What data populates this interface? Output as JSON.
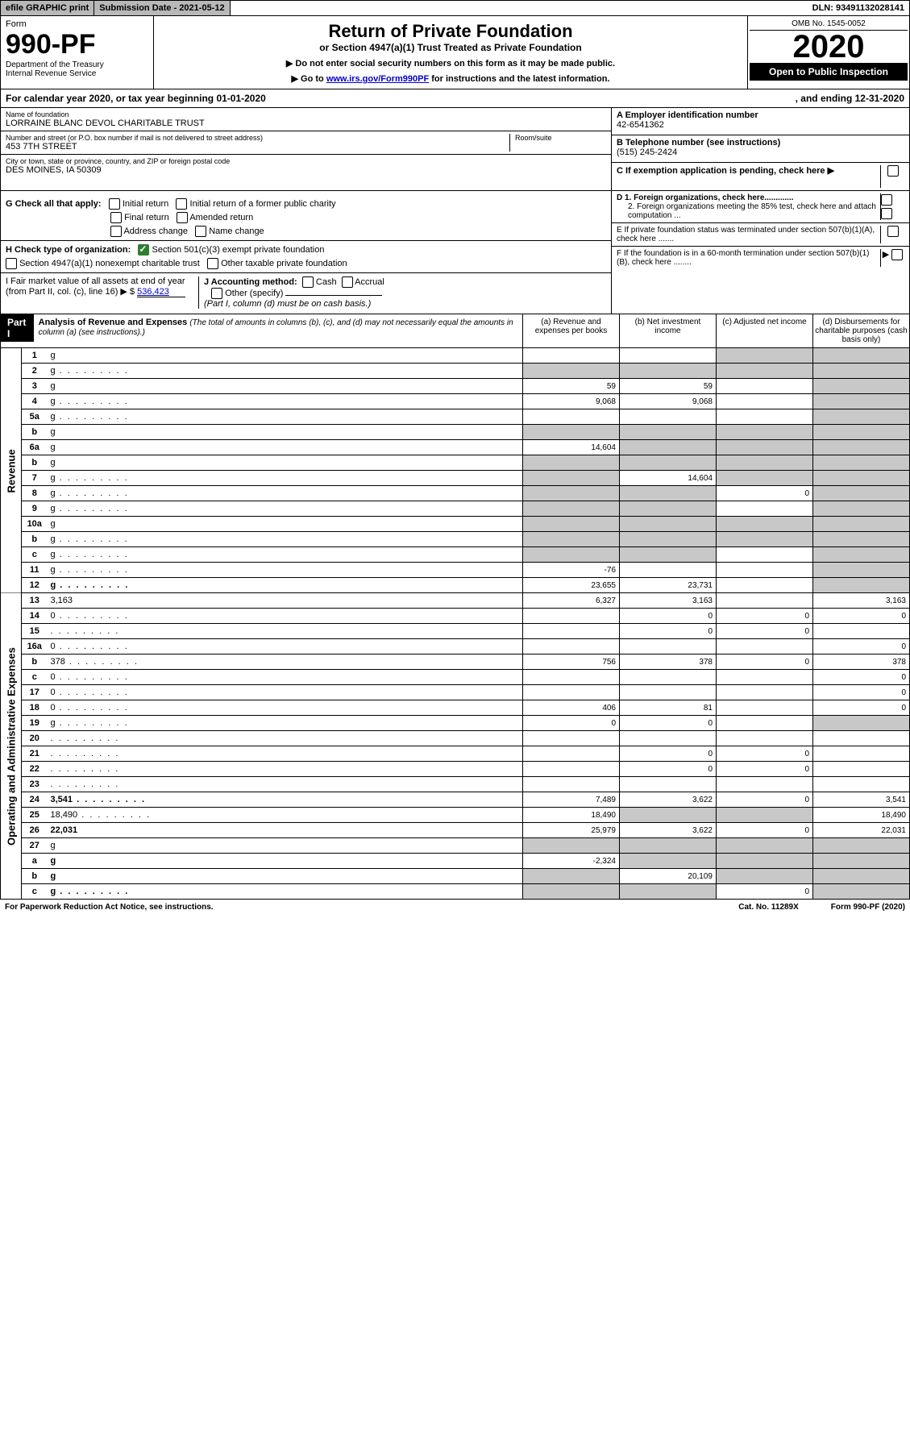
{
  "top_bar": {
    "efile": "efile GRAPHIC print",
    "sub_date_label": "Submission Date - 2021-05-12",
    "dln": "DLN: 93491132028141"
  },
  "header": {
    "form_word": "Form",
    "form_no": "990-PF",
    "dept": "Department of the Treasury",
    "irs": "Internal Revenue Service",
    "title": "Return of Private Foundation",
    "subtitle": "or Section 4947(a)(1) Trust Treated as Private Foundation",
    "note1": "▶ Do not enter social security numbers on this form as it may be made public.",
    "note2_pre": "▶ Go to ",
    "note2_link": "www.irs.gov/Form990PF",
    "note2_post": " for instructions and the latest information.",
    "omb": "OMB No. 1545-0052",
    "year": "2020",
    "open_pub": "Open to Public Inspection"
  },
  "cal_year": {
    "left": "For calendar year 2020, or tax year beginning 01-01-2020",
    "right": ", and ending 12-31-2020"
  },
  "info": {
    "name_lbl": "Name of foundation",
    "name": "LORRAINE BLANC DEVOL CHARITABLE TRUST",
    "addr_lbl": "Number and street (or P.O. box number if mail is not delivered to street address)",
    "addr": "453 7TH STREET",
    "room_lbl": "Room/suite",
    "city_lbl": "City or town, state or province, country, and ZIP or foreign postal code",
    "city": "DES MOINES, IA  50309",
    "A_lbl": "A Employer identification number",
    "A_val": "42-6541362",
    "B_lbl": "B Telephone number (see instructions)",
    "B_val": "(515) 245-2424",
    "C_lbl": "C If exemption application is pending, check here ▶",
    "D1": "D 1. Foreign organizations, check here.............",
    "D2": "2. Foreign organizations meeting the 85% test, check here and attach computation ...",
    "E": "E   If private foundation status was terminated under section 507(b)(1)(A), check here .......",
    "F": "F   If the foundation is in a 60-month termination under section 507(b)(1)(B), check here ........"
  },
  "checks": {
    "G_lbl": "G Check all that apply:",
    "G_items": [
      "Initial return",
      "Initial return of a former public charity",
      "Final return",
      "Amended return",
      "Address change",
      "Name change"
    ],
    "H_lbl": "H Check type of organization:",
    "H_501c3": "Section 501(c)(3) exempt private foundation",
    "H_4947": "Section 4947(a)(1) nonexempt charitable trust",
    "H_other": "Other taxable private foundation",
    "I_lbl": "I Fair market value of all assets at end of year (from Part II, col. (c), line 16) ▶ $",
    "I_val": "536,423",
    "J_lbl": "J Accounting method:",
    "J_cash": "Cash",
    "J_accrual": "Accrual",
    "J_other": "Other (specify)",
    "J_note": "(Part I, column (d) must be on cash basis.)"
  },
  "part1": {
    "label": "Part I",
    "title": "Analysis of Revenue and Expenses",
    "note": "(The total of amounts in columns (b), (c), and (d) may not necessarily equal the amounts in column (a) (see instructions).)",
    "col_a": "(a)   Revenue and expenses per books",
    "col_b": "(b)  Net investment income",
    "col_c": "(c)  Adjusted net income",
    "col_d": "(d)  Disbursements for charitable purposes (cash basis only)",
    "side_rev": "Revenue",
    "side_exp": "Operating and Administrative Expenses"
  },
  "rows": [
    {
      "n": "1",
      "d": "g",
      "a": "",
      "b": "",
      "c": "g"
    },
    {
      "n": "2",
      "d": "g",
      "a": "g",
      "b": "g",
      "c": "g",
      "dots": true
    },
    {
      "n": "3",
      "d": "g",
      "a": "59",
      "b": "59",
      "c": ""
    },
    {
      "n": "4",
      "d": "g",
      "a": "9,068",
      "b": "9,068",
      "c": "",
      "dots": true
    },
    {
      "n": "5a",
      "d": "g",
      "a": "",
      "b": "",
      "c": "",
      "dots": true
    },
    {
      "n": "b",
      "d": "g",
      "a": "g",
      "b": "g",
      "c": "g"
    },
    {
      "n": "6a",
      "d": "g",
      "a": "14,604",
      "b": "g",
      "c": "g"
    },
    {
      "n": "b",
      "d": "g",
      "a": "g",
      "b": "g",
      "c": "g"
    },
    {
      "n": "7",
      "d": "g",
      "a": "g",
      "b": "14,604",
      "c": "g",
      "dots": true
    },
    {
      "n": "8",
      "d": "g",
      "a": "g",
      "b": "g",
      "c": "0",
      "dots": true
    },
    {
      "n": "9",
      "d": "g",
      "a": "g",
      "b": "g",
      "c": "",
      "dots": true
    },
    {
      "n": "10a",
      "d": "g",
      "a": "g",
      "b": "g",
      "c": "g"
    },
    {
      "n": "b",
      "d": "g",
      "a": "g",
      "b": "g",
      "c": "g",
      "dots": true
    },
    {
      "n": "c",
      "d": "g",
      "a": "g",
      "b": "g",
      "c": "",
      "dots": true
    },
    {
      "n": "11",
      "d": "g",
      "a": "-76",
      "b": "",
      "c": "",
      "dots": true
    },
    {
      "n": "12",
      "d": "g",
      "a": "23,655",
      "b": "23,731",
      "c": "",
      "bold": true,
      "dots": true
    },
    {
      "n": "13",
      "d": "3,163",
      "a": "6,327",
      "b": "3,163",
      "c": ""
    },
    {
      "n": "14",
      "d": "0",
      "a": "",
      "b": "0",
      "c": "0",
      "dots": true
    },
    {
      "n": "15",
      "d": "",
      "a": "",
      "b": "0",
      "c": "0",
      "dots": true
    },
    {
      "n": "16a",
      "d": "0",
      "a": "",
      "b": "",
      "c": "",
      "dots": true
    },
    {
      "n": "b",
      "d": "378",
      "a": "756",
      "b": "378",
      "c": "0",
      "dots": true
    },
    {
      "n": "c",
      "d": "0",
      "a": "",
      "b": "",
      "c": "",
      "dots": true
    },
    {
      "n": "17",
      "d": "0",
      "a": "",
      "b": "",
      "c": "",
      "dots": true
    },
    {
      "n": "18",
      "d": "0",
      "a": "406",
      "b": "81",
      "c": "",
      "dots": true
    },
    {
      "n": "19",
      "d": "g",
      "a": "0",
      "b": "0",
      "c": "",
      "dots": true
    },
    {
      "n": "20",
      "d": "",
      "a": "",
      "b": "",
      "c": "",
      "dots": true
    },
    {
      "n": "21",
      "d": "",
      "a": "",
      "b": "0",
      "c": "0",
      "dots": true
    },
    {
      "n": "22",
      "d": "",
      "a": "",
      "b": "0",
      "c": "0",
      "dots": true
    },
    {
      "n": "23",
      "d": "",
      "a": "",
      "b": "",
      "c": "",
      "dots": true
    },
    {
      "n": "24",
      "d": "3,541",
      "a": "7,489",
      "b": "3,622",
      "c": "0",
      "bold": true,
      "dots": true
    },
    {
      "n": "25",
      "d": "18,490",
      "a": "18,490",
      "b": "g",
      "c": "g",
      "dots": true
    },
    {
      "n": "26",
      "d": "22,031",
      "a": "25,979",
      "b": "3,622",
      "c": "0",
      "bold": true
    },
    {
      "n": "27",
      "d": "g",
      "a": "g",
      "b": "g",
      "c": "g"
    },
    {
      "n": "a",
      "d": "g",
      "a": "-2,324",
      "b": "g",
      "c": "g",
      "bold": true
    },
    {
      "n": "b",
      "d": "g",
      "a": "g",
      "b": "20,109",
      "c": "g",
      "bold": true
    },
    {
      "n": "c",
      "d": "g",
      "a": "g",
      "b": "g",
      "c": "0",
      "bold": true,
      "dots": true
    }
  ],
  "footer": {
    "left": "For Paperwork Reduction Act Notice, see instructions.",
    "mid": "Cat. No. 11289X",
    "right": "Form 990-PF (2020)"
  }
}
